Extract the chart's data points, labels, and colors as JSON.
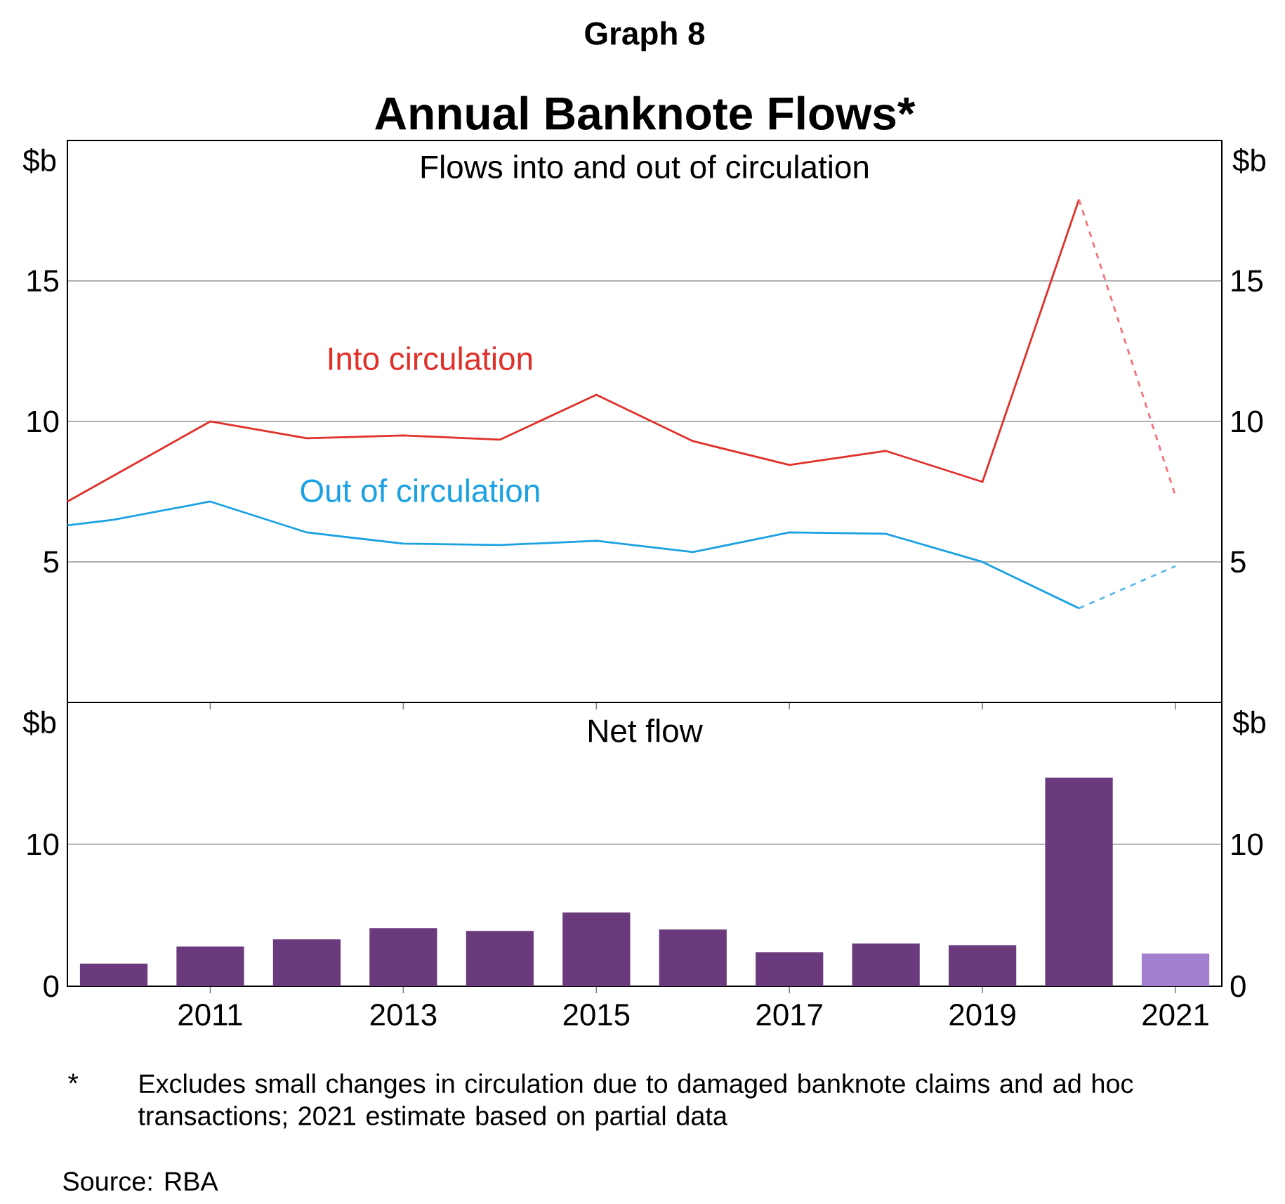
{
  "chart_data": [
    {
      "type": "line",
      "title": "Graph 8",
      "subtitle": "Annual Banknote Flows*",
      "ylabel": "$b",
      "y2label": "$b",
      "annotations": [
        "Flows into and out of circulation"
      ],
      "xlim": [
        2009.52,
        2021.48
      ],
      "xticks": [
        2011,
        2013,
        2015,
        2017,
        2019,
        2021
      ],
      "tick_labels": "y",
      "ylim": [
        0,
        20
      ],
      "yticks": [
        5,
        10,
        15
      ],
      "y2lim": [
        0,
        20
      ],
      "y2ticks": [
        5,
        10,
        15
      ],
      "grid": "y",
      "series": [
        {
          "name": "Into circulation",
          "color": "#e0302a",
          "x": [
            2009.52,
            2011,
            2012,
            2013,
            2014,
            2015,
            2016,
            2017,
            2018,
            2019,
            2020
          ],
          "values": [
            7.15,
            10.0,
            9.4,
            9.5,
            9.35,
            10.95,
            9.3,
            8.45,
            8.95,
            7.85,
            17.9
          ]
        },
        {
          "name": "Out of circulation",
          "color": "#1ba1e2",
          "x": [
            2009.52,
            2010,
            2011,
            2012,
            2013,
            2014,
            2015,
            2016,
            2017,
            2018,
            2019,
            2020
          ],
          "values": [
            6.3,
            6.5,
            7.15,
            6.05,
            5.65,
            5.6,
            5.75,
            5.35,
            6.05,
            6.0,
            5.0,
            3.35
          ]
        },
        {
          "color": "#f4737a",
          "line_style": "dashed",
          "x": [
            2020,
            2021
          ],
          "values": [
            17.9,
            7.35
          ]
        },
        {
          "color": "#5bb8e8",
          "line_style": "dashed",
          "x": [
            2020,
            2021
          ],
          "values": [
            3.35,
            4.85
          ]
        }
      ]
    },
    {
      "type": "bar",
      "title": "Net flow",
      "ylabel": "$b",
      "y2label": "$b",
      "annotations": [
        "*",
        "Excludes small changes in circulation due to damaged banknote claims and ad hoc transactions; 2021 estimate based on partial data",
        "Source:   RBA"
      ],
      "xlim": [
        2009.52,
        2021.48
      ],
      "xticks": [
        2011,
        2013,
        2015,
        2017,
        2019,
        2021
      ],
      "ylim": [
        0,
        20
      ],
      "yticks": [
        0,
        10
      ],
      "y2lim": [
        0,
        20
      ],
      "y2ticks": [
        0,
        10
      ],
      "grid": "y",
      "x": [
        2010,
        2011,
        2012,
        2013,
        2014,
        2015,
        2016,
        2017,
        2018,
        2019,
        2020,
        2021
      ],
      "values": [
        1.6,
        2.8,
        3.3,
        4.1,
        3.9,
        5.2,
        4.0,
        2.4,
        3.0,
        2.9,
        14.7,
        2.3
      ],
      "colors": [
        "#6b3a7d",
        "#6b3a7d",
        "#6b3a7d",
        "#6b3a7d",
        "#6b3a7d",
        "#6b3a7d",
        "#6b3a7d",
        "#6b3a7d",
        "#6b3a7d",
        "#6b3a7d",
        "#6b3a7d",
        "#a57fcf"
      ]
    }
  ]
}
